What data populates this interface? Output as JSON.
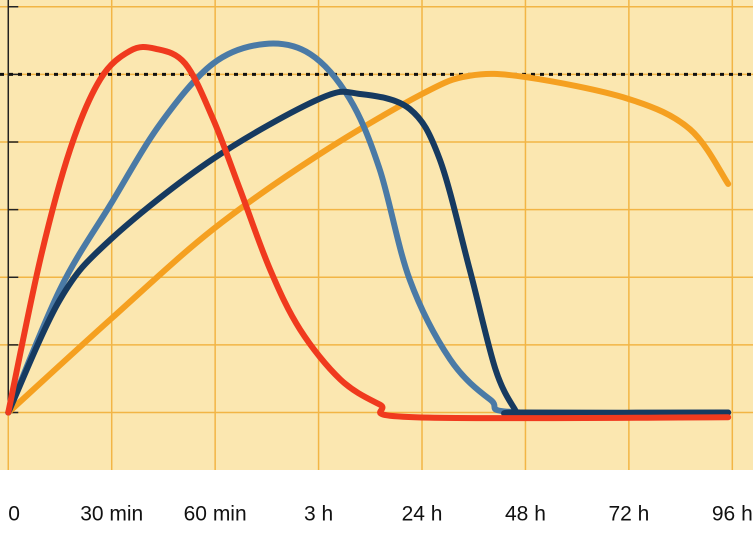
{
  "chart_data": {
    "type": "line",
    "xlim": [
      -0.08,
      7.2
    ],
    "ylim": [
      -0.85,
      6.1
    ],
    "xticks": [
      {
        "value": 0,
        "label": "0"
      },
      {
        "value": 1,
        "label": "30 min"
      },
      {
        "value": 2,
        "label": "60 min"
      },
      {
        "value": 3,
        "label": "3 h"
      },
      {
        "value": 4,
        "label": "24 h"
      },
      {
        "value": 5,
        "label": "48 h"
      },
      {
        "value": 6,
        "label": "72 h"
      },
      {
        "value": 7,
        "label": "96 h"
      }
    ],
    "yticks": [
      0,
      1,
      2,
      3,
      4,
      5,
      6
    ],
    "grid": true,
    "grid_color": "#f2b545",
    "background": "#fbe7b0",
    "reference_line": 5,
    "series": [
      {
        "color": "#f5a020",
        "x": [
          0,
          0.99,
          1.98,
          3.01,
          4.0,
          4.46,
          5.0,
          5.99,
          6.59,
          6.96
        ],
        "values": [
          0,
          1.38,
          2.71,
          3.82,
          4.71,
          4.98,
          4.96,
          4.64,
          4.19,
          3.38
        ]
      },
      {
        "color": "#4a7aa6",
        "x": [
          0,
          0.5,
          0.99,
          1.47,
          1.98,
          2.48,
          2.92,
          3.3,
          3.59,
          3.88,
          4.27,
          4.66,
          4.95,
          6.96
        ],
        "values": [
          0,
          1.82,
          3.08,
          4.27,
          5.16,
          5.45,
          5.3,
          4.64,
          3.6,
          1.97,
          0.79,
          0.19,
          0,
          0
        ]
      },
      {
        "color": "#163a60",
        "x": [
          0,
          0.5,
          0.99,
          1.98,
          3.01,
          3.4,
          3.88,
          4.17,
          4.46,
          4.71,
          4.9,
          4.95,
          6.96
        ],
        "values": [
          0,
          1.67,
          2.56,
          3.75,
          4.64,
          4.71,
          4.49,
          3.75,
          2.12,
          0.64,
          0.04,
          0,
          0
        ]
      },
      {
        "color": "#f03a1e",
        "x": [
          0,
          0.31,
          0.6,
          0.89,
          1.18,
          1.42,
          1.71,
          1.98,
          2.24,
          2.53,
          2.82,
          3.21,
          3.59,
          3.93,
          6.96
        ],
        "values": [
          0,
          2.27,
          3.9,
          4.93,
          5.35,
          5.38,
          5.16,
          4.34,
          3.3,
          2.12,
          1.23,
          0.49,
          0.12,
          -0.07,
          -0.07
        ]
      }
    ]
  }
}
